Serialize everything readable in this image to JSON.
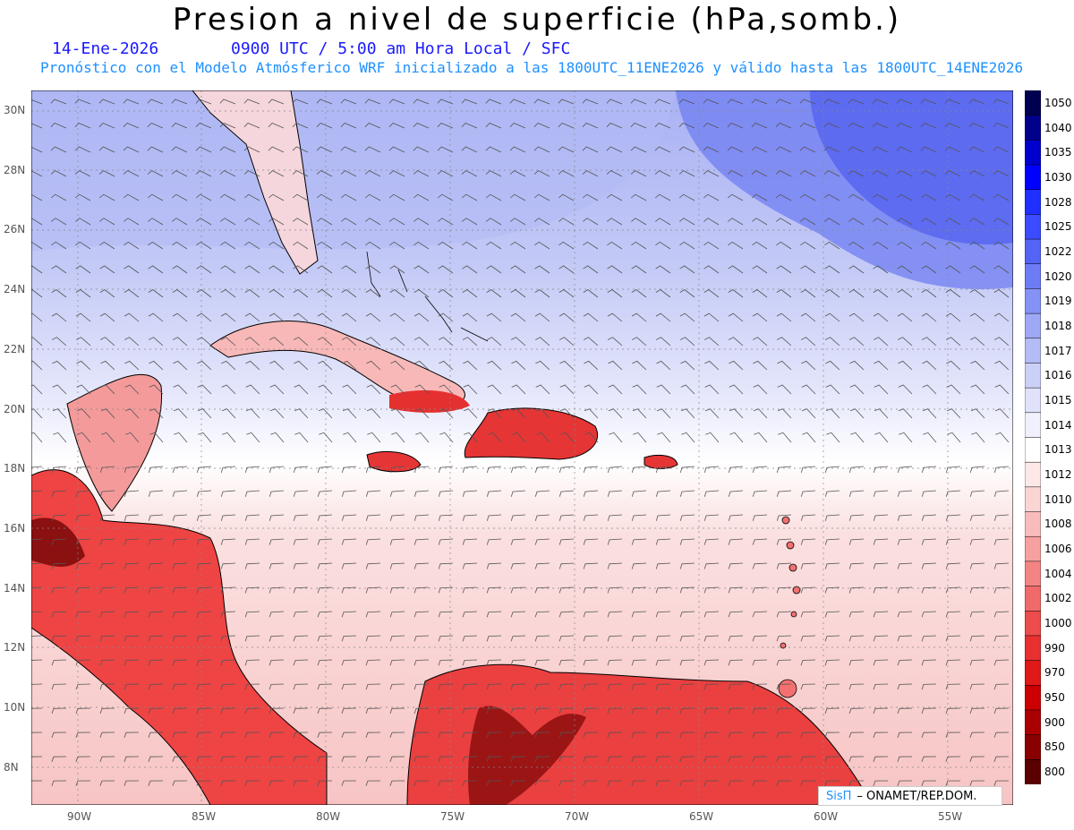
{
  "title": "Presion a nivel de superficie (hPa,somb.)",
  "date": "14-Ene-2026",
  "time": "0900 UTC / 5:00 am Hora Local / SFC",
  "forecast_note": "Pronóstico con el Modelo Atmósferico WRF inicializado a las 1800UTC_11ENE2026 y válido hasta las  1800UTC_14ENE2026",
  "lat_labels": [
    "30N",
    "28N",
    "26N",
    "24N",
    "22N",
    "20N",
    "18N",
    "16N",
    "14N",
    "12N",
    "10N",
    "8N"
  ],
  "lon_labels": [
    "90W",
    "85W",
    "80W",
    "75W",
    "70W",
    "65W",
    "60W",
    "55W"
  ],
  "legend": [
    {
      "label": "1050",
      "color": "#000050"
    },
    {
      "label": "1040",
      "color": "#00008b"
    },
    {
      "label": "1035",
      "color": "#0000cd"
    },
    {
      "label": "1030",
      "color": "#0000ff"
    },
    {
      "label": "1028",
      "color": "#1e2fff"
    },
    {
      "label": "1025",
      "color": "#3b4bff"
    },
    {
      "label": "1022",
      "color": "#5464f5"
    },
    {
      "label": "1020",
      "color": "#6d7cf5"
    },
    {
      "label": "1019",
      "color": "#8592f5"
    },
    {
      "label": "1018",
      "color": "#9ea8f5"
    },
    {
      "label": "1017",
      "color": "#b4bcf5"
    },
    {
      "label": "1016",
      "color": "#cbd0f7"
    },
    {
      "label": "1015",
      "color": "#dfe2fa"
    },
    {
      "label": "1014",
      "color": "#f0f1fd"
    },
    {
      "label": "1013",
      "color": "#ffffff"
    },
    {
      "label": "1012",
      "color": "#fde8e8"
    },
    {
      "label": "1010",
      "color": "#fbd4d4"
    },
    {
      "label": "1008",
      "color": "#f9bcbc"
    },
    {
      "label": "1006",
      "color": "#f7a0a0"
    },
    {
      "label": "1004",
      "color": "#f48484"
    },
    {
      "label": "1002",
      "color": "#f06a6a"
    },
    {
      "label": "1000",
      "color": "#ec4c4c"
    },
    {
      "label": "990",
      "color": "#e83030"
    },
    {
      "label": "970",
      "color": "#e01818"
    },
    {
      "label": "950",
      "color": "#cc0000"
    },
    {
      "label": "900",
      "color": "#aa0000"
    },
    {
      "label": "850",
      "color": "#880000"
    },
    {
      "label": "800",
      "color": "#5a0000"
    }
  ],
  "credit_brand": "SisΠ",
  "credit_text": "– ONAMET/REP.DOM."
}
